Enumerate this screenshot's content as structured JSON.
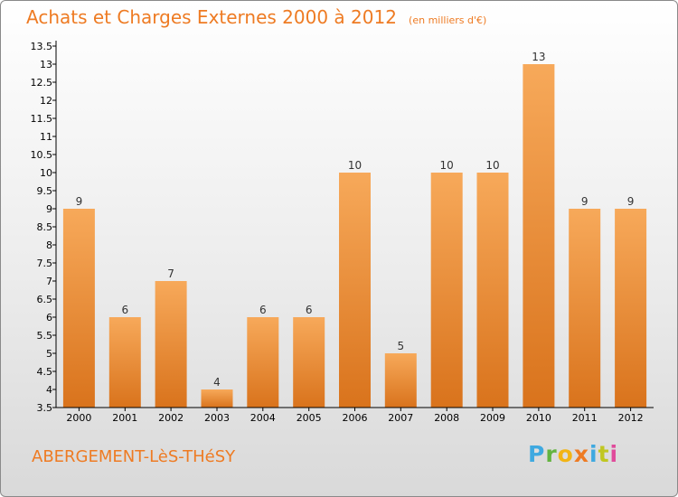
{
  "header": {
    "title": "Achats et Charges Externes 2000 à 2012",
    "subtitle": "(en milliers d'€)"
  },
  "footer": {
    "location": "ABERGEMENT-LèS-THéSY",
    "logo_text": "Proxiti"
  },
  "colors": {
    "accent": "#ee7b23",
    "bar_top": "#f7a95a",
    "bar_bottom": "#d9731c",
    "axis": "#000000"
  },
  "chart_data": {
    "type": "bar",
    "title": "Achats et Charges Externes 2000 à 2012",
    "subtitle": "(en milliers d'€)",
    "xlabel": "",
    "ylabel": "",
    "categories": [
      "2000",
      "2001",
      "2002",
      "2003",
      "2004",
      "2005",
      "2006",
      "2007",
      "2008",
      "2009",
      "2010",
      "2011",
      "2012"
    ],
    "values": [
      9,
      6,
      7,
      4,
      6,
      6,
      10,
      5,
      10,
      10,
      13,
      9,
      9
    ],
    "data_labels": [
      "9",
      "6",
      "7",
      "4",
      "6",
      "6",
      "10",
      "5",
      "10",
      "10",
      "13",
      "9",
      "9"
    ],
    "ylim": [
      3.5,
      13.5
    ],
    "yticks": [
      3.5,
      4,
      4.5,
      5,
      5.5,
      6,
      6.5,
      7,
      7.5,
      8,
      8.5,
      9,
      9.5,
      10,
      10.5,
      11,
      11.5,
      12,
      12.5,
      13,
      13.5
    ],
    "ytick_labels": [
      "3.5",
      "4",
      "4.5",
      "5",
      "5.5",
      "6",
      "6.5",
      "7",
      "7.5",
      "8",
      "8.5",
      "9",
      "9.5",
      "10",
      "10.5",
      "11",
      "11.5",
      "12",
      "12.5",
      "13",
      "13.5"
    ],
    "grid": false,
    "legend": "none"
  }
}
